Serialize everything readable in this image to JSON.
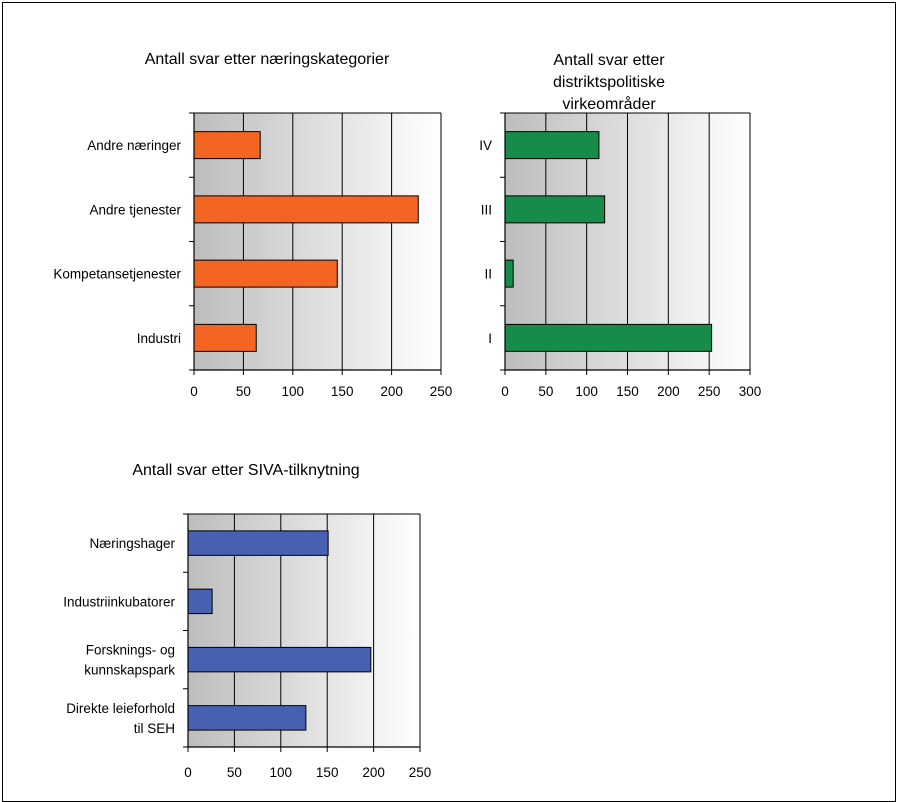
{
  "chart_data": [
    {
      "type": "bar",
      "orientation": "horizontal",
      "title": "Antall svar etter næringskategorier",
      "categories": [
        "Industri",
        "Kompetansetjenester",
        "Andre tjenester",
        "Andre næringer"
      ],
      "values": [
        63,
        145,
        227,
        67
      ],
      "xlim": [
        0,
        250
      ],
      "xticks": [
        "0",
        "50",
        "100",
        "150",
        "200",
        "250"
      ],
      "color": "#F26522",
      "grid": true
    },
    {
      "type": "bar",
      "orientation": "horizontal",
      "title": [
        "Antall svar etter",
        "distriktspolitiske",
        "virkeområder"
      ],
      "categories": [
        "I",
        "II",
        "III",
        "IV"
      ],
      "values": [
        253,
        10,
        122,
        115
      ],
      "xlim": [
        0,
        300
      ],
      "xticks": [
        "0",
        "50",
        "100",
        "150",
        "200",
        "250",
        "300"
      ],
      "color": "#168B4A",
      "grid": true
    },
    {
      "type": "bar",
      "orientation": "horizontal",
      "title": "Antall svar etter SIVA-tilknytning",
      "categories": [
        [
          "Direkte leieforhold",
          "til SEH"
        ],
        [
          "Forsknings- og",
          "kunnskapspark"
        ],
        [
          "Industriinkubatorer"
        ],
        [
          "Næringshager"
        ]
      ],
      "values": [
        127,
        197,
        26,
        151
      ],
      "xlim": [
        0,
        250
      ],
      "xticks": [
        "0",
        "50",
        "100",
        "150",
        "200",
        "250"
      ],
      "color": "#4760B0",
      "grid": true
    }
  ]
}
